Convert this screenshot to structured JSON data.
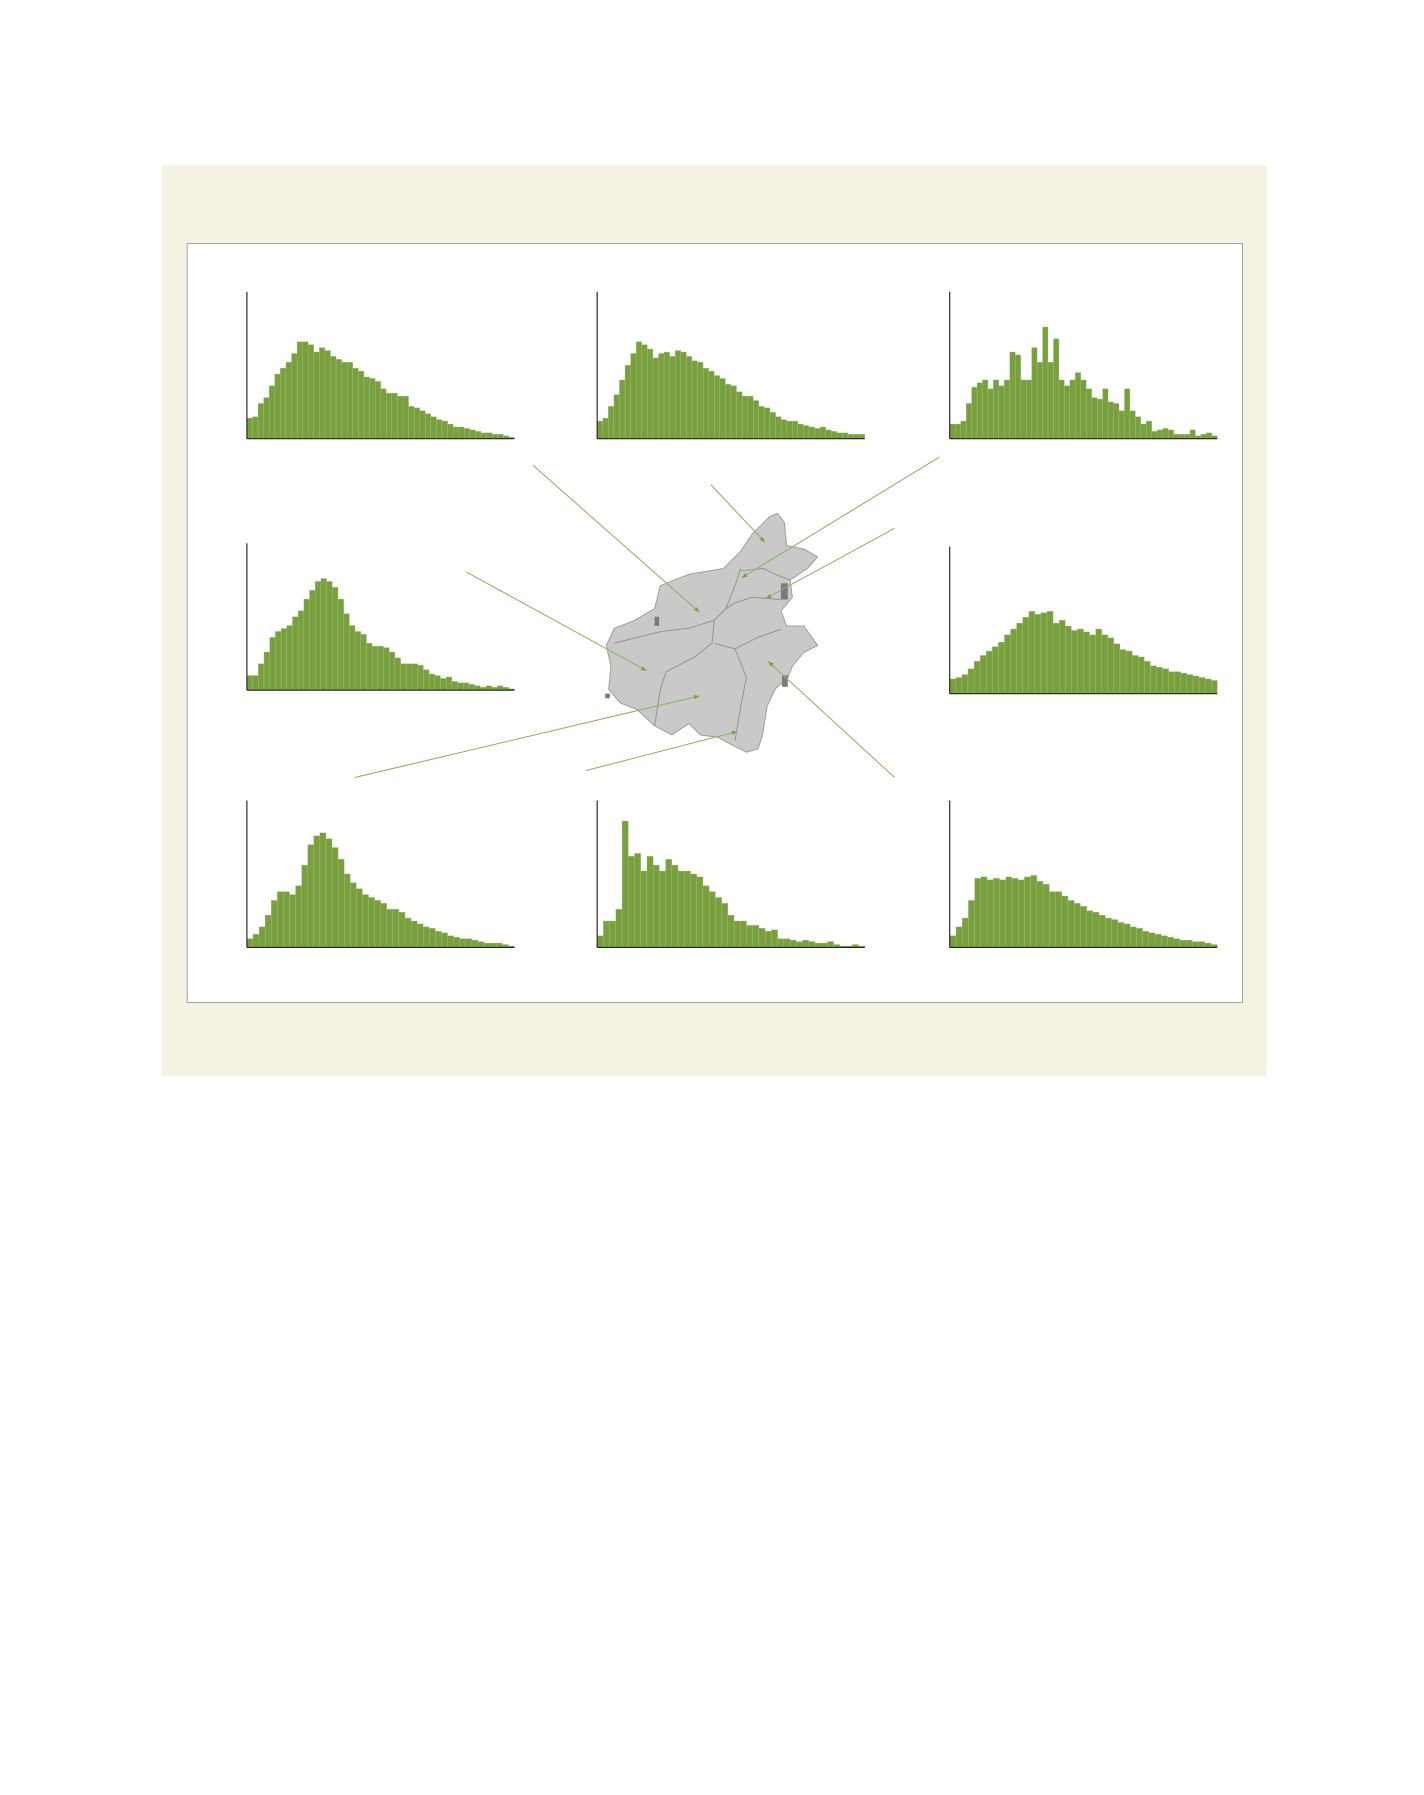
{
  "colors": {
    "panel_background": "#f4f3e3",
    "frame_background": "#ffffff",
    "bar": "#78a03f",
    "bar_gap": "#a9c57f",
    "map_fill": "#c9c9c7",
    "map_border": "#8f8f8f",
    "leader_line": "#8fb060"
  },
  "chart_data": [
    {
      "type": "bar",
      "position_word": "top-left",
      "title": "",
      "xlabel": "",
      "ylabel": "",
      "grid": false,
      "values": [
        14,
        15,
        24,
        28,
        36,
        44,
        48,
        52,
        58,
        66,
        66,
        64,
        59,
        62,
        60,
        56,
        54,
        52,
        52,
        48,
        46,
        42,
        41,
        39,
        34,
        31,
        31,
        29,
        29,
        22,
        21,
        19,
        17,
        15,
        13,
        12,
        10,
        8,
        8,
        7,
        6,
        5,
        4,
        4,
        3,
        3,
        2,
        1
      ]
    },
    {
      "type": "bar",
      "position_word": "top-center",
      "title": "",
      "xlabel": "",
      "ylabel": "",
      "grid": false,
      "values": [
        12,
        14,
        22,
        30,
        40,
        50,
        58,
        66,
        64,
        61,
        55,
        58,
        59,
        56,
        60,
        59,
        56,
        53,
        52,
        48,
        46,
        43,
        41,
        37,
        36,
        32,
        29,
        29,
        26,
        22,
        21,
        18,
        15,
        13,
        12,
        12,
        10,
        9,
        8,
        7,
        8,
        6,
        5,
        4,
        4,
        3,
        3,
        3
      ]
    },
    {
      "type": "bar",
      "position_word": "top-right",
      "title": "",
      "xlabel": "",
      "ylabel": "",
      "grid": false,
      "values": [
        10,
        10,
        12,
        24,
        35,
        38,
        40,
        34,
        40,
        36,
        40,
        59,
        57,
        40,
        40,
        62,
        52,
        76,
        52,
        68,
        40,
        36,
        40,
        45,
        40,
        34,
        28,
        27,
        34,
        25,
        24,
        19,
        34,
        19,
        15,
        10,
        12,
        5,
        6,
        7,
        6,
        3,
        3,
        3,
        6,
        2,
        3,
        4,
        2
      ]
    },
    {
      "type": "bar",
      "position_word": "middle-left",
      "title": "",
      "xlabel": "",
      "ylabel": "",
      "grid": false,
      "values": [
        10,
        10,
        18,
        26,
        36,
        40,
        42,
        44,
        50,
        54,
        62,
        68,
        74,
        76,
        74,
        70,
        62,
        52,
        44,
        40,
        38,
        32,
        30,
        30,
        29,
        26,
        22,
        18,
        18,
        18,
        17,
        14,
        11,
        10,
        8,
        9,
        6,
        5,
        5,
        4,
        3,
        2,
        3,
        2,
        3,
        2,
        1
      ]
    },
    {
      "type": "bar",
      "position_word": "middle-right",
      "title": "",
      "xlabel": "",
      "ylabel": "",
      "grid": false,
      "values": [
        10,
        11,
        13,
        17,
        22,
        26,
        29,
        32,
        35,
        40,
        44,
        48,
        52,
        56,
        54,
        55,
        56,
        48,
        50,
        46,
        43,
        44,
        42,
        40,
        44,
        40,
        38,
        34,
        30,
        29,
        26,
        25,
        22,
        19,
        18,
        17,
        15,
        15,
        14,
        13,
        12,
        11,
        10,
        9
      ]
    },
    {
      "type": "bar",
      "position_word": "bottom-left",
      "title": "",
      "xlabel": "",
      "ylabel": "",
      "grid": false,
      "values": [
        6,
        9,
        14,
        22,
        32,
        38,
        38,
        36,
        42,
        56,
        70,
        76,
        78,
        74,
        68,
        60,
        50,
        44,
        40,
        36,
        34,
        32,
        30,
        26,
        26,
        24,
        20,
        18,
        16,
        14,
        13,
        11,
        10,
        8,
        7,
        6,
        6,
        5,
        4,
        3,
        3,
        3,
        2,
        1
      ]
    },
    {
      "type": "bar",
      "position_word": "bottom-center",
      "title": "",
      "xlabel": "",
      "ylabel": "",
      "grid": false,
      "values": [
        8,
        18,
        18,
        26,
        86,
        62,
        64,
        52,
        62,
        56,
        52,
        60,
        56,
        52,
        52,
        50,
        48,
        42,
        38,
        34,
        30,
        22,
        18,
        18,
        15,
        15,
        13,
        11,
        12,
        6,
        6,
        5,
        4,
        5,
        4,
        3,
        3,
        4,
        2,
        1,
        1,
        2,
        1
      ]
    },
    {
      "type": "bar",
      "position_word": "bottom-right",
      "title": "",
      "xlabel": "",
      "ylabel": "",
      "grid": false,
      "values": [
        8,
        14,
        20,
        32,
        47,
        48,
        46,
        47,
        46,
        48,
        47,
        46,
        48,
        49,
        45,
        43,
        38,
        38,
        35,
        32,
        30,
        28,
        25,
        24,
        22,
        20,
        19,
        17,
        16,
        14,
        13,
        11,
        10,
        9,
        8,
        7,
        6,
        5,
        5,
        4,
        4,
        3,
        2
      ]
    }
  ]
}
